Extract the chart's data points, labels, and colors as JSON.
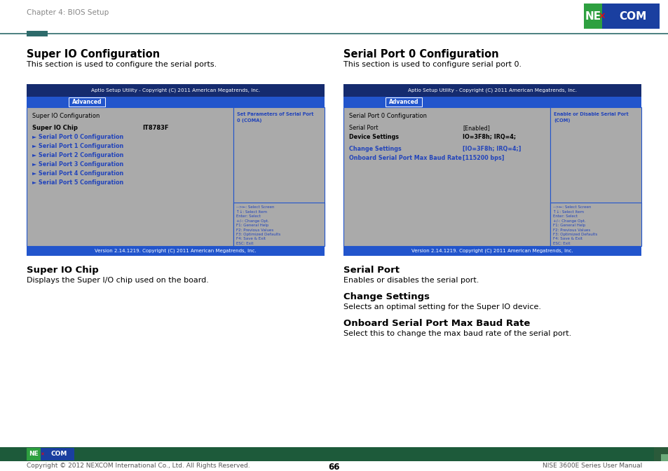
{
  "page_header": "Chapter 4: BIOS Setup",
  "page_footer_left": "Copyright © 2012 NEXCOM International Co., Ltd. All Rights Reserved.",
  "page_footer_center": "66",
  "page_footer_right": "NISE 3600E Series User Manual",
  "left_section_title": "Super IO Configuration",
  "left_section_desc": "This section is used to configure the serial ports.",
  "left_bios_header": "Aptio Setup Utility - Copyright (C) 2011 American Megatrends, Inc.",
  "left_bios_tab": "Advanced",
  "left_bios_inner_title": "Super IO Configuration",
  "left_bios_chip_label": "Super IO Chip",
  "left_bios_chip_value": "IT8783F",
  "left_bios_menu_items": [
    "► Serial Port 0 Configuration",
    "► Serial Port 1 Configuration",
    "► Serial Port 2 Configuration",
    "► Serial Port 3 Configuration",
    "► Serial Port 4 Configuration",
    "► Serial Port 5 Configuration"
  ],
  "left_bios_right_help": "Set Parameters of Serial Port\n0 (COMA)",
  "left_bios_nav": "-->←: Select Screen\n↑↓: Select Item\nEnter: Select\n+/-: Change Opt.\nF1: General Help\nF2: Previous Values\nF3: Optimized Defaults\nF4: Save & Exit\nESC: Exit",
  "left_bios_version": "Version 2.14.1219. Copyright (C) 2011 American Megatrends, Inc.",
  "left_sub_title": "Super IO Chip",
  "left_sub_desc": "Displays the Super I/O chip used on the board.",
  "right_section_title": "Serial Port 0 Configuration",
  "right_section_desc": "This section is used to configure serial port 0.",
  "right_bios_header": "Aptio Setup Utility - Copyright (C) 2011 American Megatrends, Inc.",
  "right_bios_tab": "Advanced",
  "right_bios_inner_title": "Serial Port 0 Configuration",
  "right_bios_serial_port_label": "Serial Port",
  "right_bios_serial_port_value": "[Enabled]",
  "right_bios_device_label": "Device Settings",
  "right_bios_device_value": "IO=3F8h; IRQ=4;",
  "right_bios_change_label": "Change Settings",
  "right_bios_change_value": "[IO=3F8h; IRQ=4;]",
  "right_bios_baud_label": "Onboard Serial Port Max Baud Rate",
  "right_bios_baud_value": "[115200 bps]",
  "right_bios_right_help": "Enable or Disable Serial Port\n(COM)",
  "right_bios_nav": "-->←: Select Screen\n↑↓: Select Item\nEnter: Select\n+/-: Change Opt.\nF1: General Help\nF2: Previous Values\nF3: Optimized Defaults\nF4: Save & Exit\nESC: Exit",
  "right_bios_version": "Version 2.14.1219. Copyright (C) 2011 American Megatrends, Inc.",
  "right_sub_title1": "Serial Port",
  "right_sub_desc1": "Enables or disables the serial port.",
  "right_sub_title2": "Change Settings",
  "right_sub_desc2": "Selects an optimal setting for the Super IO device.",
  "right_sub_title3": "Onboard Serial Port Max Baud Rate",
  "right_sub_desc3": "Select this to change the max baud rate of the serial port.",
  "colors": {
    "bios_header_bg": "#152b6e",
    "bios_tab_bg": "#2255cc",
    "bios_inner_bg": "#aaaaaa",
    "bios_border": "#2255cc",
    "bios_menu_blue": "#2244bb",
    "bios_version_bg": "#2255cc",
    "bios_nav_text": "#2244bb",
    "header_line_dark": "#2e6b6b",
    "accent_block": "#2e6b6b",
    "footer_bar_bg": "#1d5a3a",
    "nexcom_logo_blue": "#1a3fa0",
    "nexcom_logo_green": "#2ea040",
    "gray_text": "#888888",
    "white": "#ffffff",
    "black": "#000000"
  }
}
